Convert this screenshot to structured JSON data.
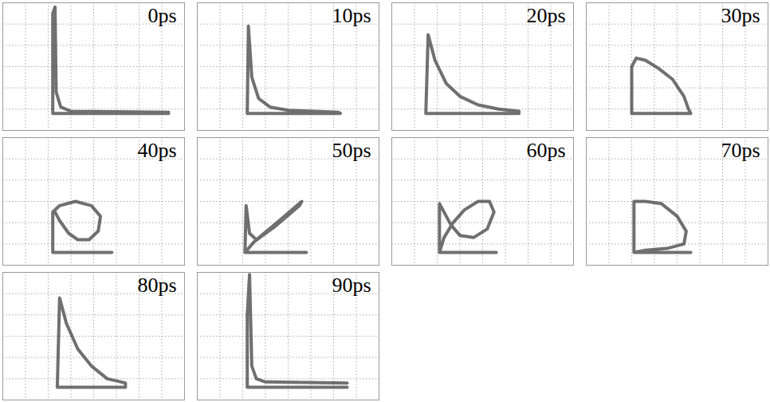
{
  "chart_data": [
    {
      "type": "line",
      "title": "0ps",
      "color": "#333333",
      "grid": true,
      "tick_labels": false,
      "xlim": [
        0,
        8
      ],
      "ylim": [
        0,
        6
      ],
      "xticks": [
        0,
        1,
        2,
        3,
        4,
        5,
        6,
        7,
        8
      ],
      "yticks": [
        0,
        1,
        2,
        3,
        4,
        5,
        6
      ],
      "x": [
        7.3,
        3.0,
        2.55,
        2.35,
        2.3,
        2.2,
        2.2,
        7.3
      ],
      "values": [
        0.85,
        0.9,
        1.1,
        1.8,
        5.8,
        5.5,
        0.8,
        0.8
      ]
    },
    {
      "type": "line",
      "title": "10ps",
      "color": "#333333",
      "grid": true,
      "tick_labels": false,
      "xlim": [
        0,
        8
      ],
      "ylim": [
        0,
        6
      ],
      "xticks": [
        0,
        1,
        2,
        3,
        4,
        5,
        6,
        7,
        8
      ],
      "yticks": [
        0,
        1,
        2,
        3,
        4,
        5,
        6
      ],
      "x": [
        2.2,
        2.25,
        2.4,
        2.7,
        3.2,
        4.0,
        6.2,
        6.3,
        2.2
      ],
      "values": [
        0.8,
        4.9,
        2.5,
        1.5,
        1.1,
        0.95,
        0.85,
        0.8,
        0.8
      ]
    },
    {
      "type": "line",
      "title": "20ps",
      "color": "#333333",
      "grid": true,
      "tick_labels": false,
      "xlim": [
        0,
        8
      ],
      "ylim": [
        0,
        6
      ],
      "xticks": [
        0,
        1,
        2,
        3,
        4,
        5,
        6,
        7,
        8
      ],
      "yticks": [
        0,
        1,
        2,
        3,
        4,
        5,
        6
      ],
      "x": [
        1.5,
        1.6,
        1.9,
        2.4,
        3.0,
        3.8,
        4.7,
        5.6,
        5.6,
        1.5
      ],
      "values": [
        0.8,
        4.5,
        3.3,
        2.2,
        1.6,
        1.2,
        1.0,
        0.9,
        0.8,
        0.8
      ]
    },
    {
      "type": "line",
      "title": "30ps",
      "color": "#333333",
      "grid": true,
      "tick_labels": false,
      "xlim": [
        0,
        8
      ],
      "ylim": [
        0,
        6
      ],
      "xticks": [
        0,
        1,
        2,
        3,
        4,
        5,
        6,
        7,
        8
      ],
      "yticks": [
        0,
        1,
        2,
        3,
        4,
        5,
        6
      ],
      "x": [
        2.0,
        2.0,
        2.2,
        2.6,
        3.2,
        3.8,
        4.3,
        4.5,
        4.6,
        2.0
      ],
      "values": [
        0.8,
        3.0,
        3.4,
        3.3,
        2.9,
        2.4,
        1.6,
        1.0,
        0.8,
        0.8
      ]
    },
    {
      "type": "line",
      "title": "40ps",
      "color": "#333333",
      "grid": true,
      "tick_labels": false,
      "xlim": [
        0,
        8
      ],
      "ylim": [
        0,
        6
      ],
      "xticks": [
        0,
        1,
        2,
        3,
        4,
        5,
        6,
        7,
        8
      ],
      "yticks": [
        0,
        1,
        2,
        3,
        4,
        5,
        6
      ],
      "x": [
        4.8,
        2.2,
        2.2,
        2.5,
        3.2,
        3.9,
        4.3,
        4.2,
        3.8,
        3.3,
        2.9,
        2.5,
        2.3
      ],
      "values": [
        0.6,
        0.6,
        2.5,
        2.8,
        3.0,
        2.8,
        2.3,
        1.6,
        1.2,
        1.2,
        1.5,
        2.1,
        2.5
      ]
    },
    {
      "type": "line",
      "title": "50ps",
      "color": "#333333",
      "grid": true,
      "tick_labels": false,
      "xlim": [
        0,
        8
      ],
      "ylim": [
        0,
        6
      ],
      "xticks": [
        0,
        1,
        2,
        3,
        4,
        5,
        6,
        7,
        8
      ],
      "yticks": [
        0,
        1,
        2,
        3,
        4,
        5,
        6
      ],
      "x": [
        4.8,
        2.1,
        2.15,
        2.3,
        2.6,
        3.5,
        4.6,
        4.5,
        3.4,
        2.5,
        2.1
      ],
      "values": [
        0.6,
        0.6,
        2.8,
        1.5,
        1.2,
        2.0,
        3.0,
        2.8,
        1.8,
        1.1,
        0.6
      ]
    },
    {
      "type": "line",
      "title": "60ps",
      "color": "#333333",
      "grid": true,
      "tick_labels": false,
      "xlim": [
        0,
        8
      ],
      "ylim": [
        0,
        6
      ],
      "xticks": [
        0,
        1,
        2,
        3,
        4,
        5,
        6,
        7,
        8
      ],
      "yticks": [
        0,
        1,
        2,
        3,
        4,
        5,
        6
      ],
      "x": [
        4.6,
        2.1,
        2.1,
        2.3,
        2.6,
        3.0,
        3.6,
        4.2,
        4.5,
        4.3,
        3.8,
        3.2,
        2.7,
        2.3,
        2.1
      ],
      "values": [
        0.6,
        0.6,
        2.9,
        2.5,
        1.9,
        1.4,
        1.3,
        1.7,
        2.5,
        3.0,
        3.0,
        2.6,
        2.0,
        1.3,
        0.6
      ]
    },
    {
      "type": "line",
      "title": "70ps",
      "color": "#333333",
      "grid": true,
      "tick_labels": false,
      "xlim": [
        0,
        8
      ],
      "ylim": [
        0,
        6
      ],
      "xticks": [
        0,
        1,
        2,
        3,
        4,
        5,
        6,
        7,
        8
      ],
      "yticks": [
        0,
        1,
        2,
        3,
        4,
        5,
        6
      ],
      "x": [
        4.6,
        2.1,
        2.1,
        2.6,
        3.3,
        4.0,
        4.4,
        4.3,
        3.6,
        2.6,
        2.1
      ],
      "values": [
        0.6,
        0.6,
        3.0,
        3.0,
        2.9,
        2.3,
        1.6,
        1.0,
        0.8,
        0.7,
        0.6
      ]
    },
    {
      "type": "line",
      "title": "80ps",
      "color": "#333333",
      "grid": true,
      "tick_labels": false,
      "xlim": [
        0,
        8
      ],
      "ylim": [
        0,
        6
      ],
      "xticks": [
        0,
        1,
        2,
        3,
        4,
        5,
        6,
        7,
        8
      ],
      "yticks": [
        0,
        1,
        2,
        3,
        4,
        5,
        6
      ],
      "x": [
        2.4,
        2.5,
        2.8,
        3.3,
        3.9,
        4.6,
        5.4,
        5.4,
        2.4
      ],
      "values": [
        0.6,
        4.8,
        3.6,
        2.4,
        1.6,
        1.0,
        0.8,
        0.6,
        0.6
      ]
    },
    {
      "type": "line",
      "title": "90ps",
      "color": "#333333",
      "grid": true,
      "tick_labels": false,
      "xlim": [
        0,
        8
      ],
      "ylim": [
        0,
        6
      ],
      "xticks": [
        0,
        1,
        2,
        3,
        4,
        5,
        6,
        7,
        8
      ],
      "yticks": [
        0,
        1,
        2,
        3,
        4,
        5,
        6
      ],
      "x": [
        6.6,
        3.0,
        2.6,
        2.4,
        2.3,
        2.2,
        2.2,
        6.6
      ],
      "values": [
        0.8,
        0.85,
        1.0,
        1.6,
        5.9,
        4.0,
        0.6,
        0.6
      ]
    }
  ]
}
